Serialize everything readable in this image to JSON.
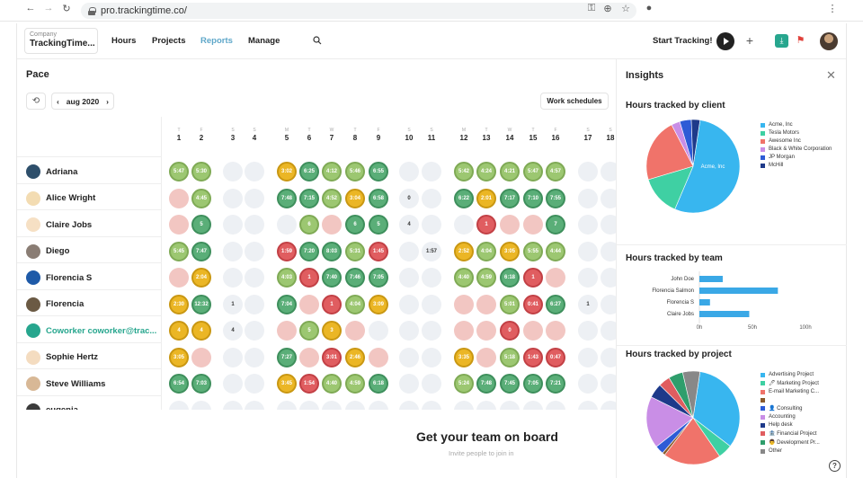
{
  "browser": {
    "url": "pro.trackingtime.co/"
  },
  "header": {
    "company_label": "Company",
    "company_name": "TrackingTime...",
    "nav": [
      "Hours",
      "Projects",
      "Reports",
      "Manage"
    ],
    "active_nav": "Reports",
    "start_tracking": "Start Tracking!"
  },
  "pace": {
    "title": "Pace",
    "month": "aug 2020",
    "work_schedules": "Work schedules",
    "days": [
      {
        "wd": "T",
        "d": "1"
      },
      {
        "wd": "F",
        "d": "2"
      },
      {
        "wd": "S",
        "d": "3"
      },
      {
        "wd": "S",
        "d": "4"
      },
      {
        "wd": "M",
        "d": "5"
      },
      {
        "wd": "T",
        "d": "6"
      },
      {
        "wd": "W",
        "d": "7"
      },
      {
        "wd": "T",
        "d": "8"
      },
      {
        "wd": "F",
        "d": "9"
      },
      {
        "wd": "S",
        "d": "10"
      },
      {
        "wd": "S",
        "d": "11"
      },
      {
        "wd": "M",
        "d": "12"
      },
      {
        "wd": "T",
        "d": "13"
      },
      {
        "wd": "W",
        "d": "14"
      },
      {
        "wd": "T",
        "d": "15"
      },
      {
        "wd": "F",
        "d": "16"
      },
      {
        "wd": "S",
        "d": "17"
      },
      {
        "wd": "S",
        "d": "18"
      }
    ],
    "users": [
      {
        "name": "Adriana",
        "cells": [
          [
            "lg",
            "5:47"
          ],
          [
            "lg",
            "5:30"
          ],
          [
            "e",
            ""
          ],
          [
            "e",
            ""
          ],
          [
            "y",
            "3:02"
          ],
          [
            "g",
            "6:25"
          ],
          [
            "lg",
            "4:12"
          ],
          [
            "lg",
            "5:46"
          ],
          [
            "g",
            "6:55"
          ],
          [
            "e",
            ""
          ],
          [
            "e",
            ""
          ],
          [
            "lg",
            "5:42"
          ],
          [
            "lg",
            "4:24"
          ],
          [
            "lg",
            "4:21"
          ],
          [
            "lg",
            "5:47"
          ],
          [
            "lg",
            "4:57"
          ],
          [
            "e",
            ""
          ],
          [
            "e",
            ""
          ]
        ]
      },
      {
        "name": "Alice Wright",
        "cells": [
          [
            "p",
            ""
          ],
          [
            "lg",
            "4:45"
          ],
          [
            "e",
            ""
          ],
          [
            "e",
            ""
          ],
          [
            "g",
            "7:48"
          ],
          [
            "g",
            "7:15"
          ],
          [
            "lg",
            "4:52"
          ],
          [
            "y",
            "3:04"
          ],
          [
            "g",
            "6:58"
          ],
          [
            "w",
            "0"
          ],
          [
            "e",
            ""
          ],
          [
            "g",
            "6:22"
          ],
          [
            "y",
            "2:01"
          ],
          [
            "g",
            "7:17"
          ],
          [
            "g",
            "7:10"
          ],
          [
            "g",
            "7:55"
          ],
          [
            "e",
            ""
          ],
          [
            "e",
            ""
          ]
        ]
      },
      {
        "name": "Claire Jobs",
        "cells": [
          [
            "p",
            ""
          ],
          [
            "g",
            "5"
          ],
          [
            "e",
            ""
          ],
          [
            "e",
            ""
          ],
          [
            "e",
            ""
          ],
          [
            "lg",
            "6"
          ],
          [
            "p",
            ""
          ],
          [
            "g",
            "6"
          ],
          [
            "g",
            "5"
          ],
          [
            "w",
            "4"
          ],
          [
            "e",
            ""
          ],
          [
            "e",
            ""
          ],
          [
            "r",
            "1"
          ],
          [
            "p",
            ""
          ],
          [
            "p",
            ""
          ],
          [
            "g",
            "7"
          ],
          [
            "e",
            ""
          ],
          [
            "e",
            ""
          ]
        ]
      },
      {
        "name": "Diego",
        "cells": [
          [
            "lg",
            "5:45"
          ],
          [
            "g",
            "7:47"
          ],
          [
            "e",
            ""
          ],
          [
            "e",
            ""
          ],
          [
            "r",
            "1:59"
          ],
          [
            "g",
            "7:20"
          ],
          [
            "g",
            "8:03"
          ],
          [
            "lg",
            "5:31"
          ],
          [
            "r",
            "1:45"
          ],
          [
            "e",
            ""
          ],
          [
            "w",
            "1:57"
          ],
          [
            "y",
            "2:52"
          ],
          [
            "lg",
            "4:04"
          ],
          [
            "y",
            "3:05"
          ],
          [
            "lg",
            "5:55"
          ],
          [
            "lg",
            "4:44"
          ],
          [
            "e",
            ""
          ],
          [
            "e",
            ""
          ]
        ]
      },
      {
        "name": "Florencia S",
        "cells": [
          [
            "p",
            ""
          ],
          [
            "y",
            "2:04"
          ],
          [
            "e",
            ""
          ],
          [
            "e",
            ""
          ],
          [
            "lg",
            "4:03"
          ],
          [
            "r",
            "1"
          ],
          [
            "g",
            "7:40"
          ],
          [
            "g",
            "7:46"
          ],
          [
            "g",
            "7:05"
          ],
          [
            "e",
            ""
          ],
          [
            "e",
            ""
          ],
          [
            "lg",
            "4:40"
          ],
          [
            "lg",
            "4:59"
          ],
          [
            "g",
            "6:18"
          ],
          [
            "r",
            "1"
          ],
          [
            "p",
            ""
          ],
          [
            "e",
            ""
          ],
          [
            "e",
            ""
          ]
        ]
      },
      {
        "name": "Florencia",
        "cells": [
          [
            "y",
            "2:30"
          ],
          [
            "g",
            "12:32"
          ],
          [
            "w",
            "1"
          ],
          [
            "e",
            ""
          ],
          [
            "g",
            "7:04"
          ],
          [
            "p",
            ""
          ],
          [
            "r",
            "1"
          ],
          [
            "lg",
            "4:04"
          ],
          [
            "y",
            "3:09"
          ],
          [
            "e",
            ""
          ],
          [
            "e",
            ""
          ],
          [
            "p",
            ""
          ],
          [
            "p",
            ""
          ],
          [
            "lg",
            "5:01"
          ],
          [
            "r",
            "0:41"
          ],
          [
            "g",
            "6:27"
          ],
          [
            "w",
            "1"
          ],
          [
            "e",
            ""
          ]
        ]
      },
      {
        "name": "Coworker coworker@trac...",
        "teal": true,
        "cells": [
          [
            "y",
            "4"
          ],
          [
            "y",
            "4"
          ],
          [
            "w",
            "4"
          ],
          [
            "e",
            ""
          ],
          [
            "p",
            ""
          ],
          [
            "lg",
            "5"
          ],
          [
            "y",
            "3"
          ],
          [
            "p",
            ""
          ],
          [
            "e",
            ""
          ],
          [
            "e",
            ""
          ],
          [
            "e",
            ""
          ],
          [
            "p",
            ""
          ],
          [
            "p",
            ""
          ],
          [
            "r",
            "0"
          ],
          [
            "p",
            ""
          ],
          [
            "p",
            ""
          ],
          [
            "e",
            ""
          ],
          [
            "e",
            ""
          ]
        ]
      },
      {
        "name": "Sophie Hertz",
        "cells": [
          [
            "y",
            "3:05"
          ],
          [
            "p",
            ""
          ],
          [
            "e",
            ""
          ],
          [
            "e",
            ""
          ],
          [
            "g",
            "7:27"
          ],
          [
            "p",
            ""
          ],
          [
            "r",
            "3:01"
          ],
          [
            "y",
            "2:46"
          ],
          [
            "p",
            ""
          ],
          [
            "e",
            ""
          ],
          [
            "e",
            ""
          ],
          [
            "y",
            "3:35"
          ],
          [
            "p",
            ""
          ],
          [
            "lg",
            "5:18"
          ],
          [
            "r",
            "1:43"
          ],
          [
            "r",
            "0:47"
          ],
          [
            "e",
            ""
          ],
          [
            "e",
            ""
          ]
        ]
      },
      {
        "name": "Steve Williams",
        "cells": [
          [
            "g",
            "6:54"
          ],
          [
            "g",
            "7:03"
          ],
          [
            "e",
            ""
          ],
          [
            "e",
            ""
          ],
          [
            "y",
            "3:45"
          ],
          [
            "r",
            "1:54"
          ],
          [
            "lg",
            "4:40"
          ],
          [
            "lg",
            "4:59"
          ],
          [
            "g",
            "6:18"
          ],
          [
            "e",
            ""
          ],
          [
            "e",
            ""
          ],
          [
            "lg",
            "5:24"
          ],
          [
            "g",
            "7:48"
          ],
          [
            "g",
            "7:45"
          ],
          [
            "g",
            "7:05"
          ],
          [
            "g",
            "7:21"
          ],
          [
            "e",
            ""
          ],
          [
            "e",
            ""
          ]
        ]
      },
      {
        "name": "eugenia",
        "cells": [
          [
            "e",
            ""
          ],
          [
            "e",
            ""
          ],
          [
            "e",
            ""
          ],
          [
            "e",
            ""
          ],
          [
            "e",
            ""
          ],
          [
            "e",
            ""
          ],
          [
            "e",
            ""
          ],
          [
            "e",
            ""
          ],
          [
            "e",
            ""
          ],
          [
            "e",
            ""
          ],
          [
            "e",
            ""
          ],
          [
            "e",
            ""
          ],
          [
            "e",
            ""
          ],
          [
            "e",
            ""
          ],
          [
            "e",
            ""
          ],
          [
            "e",
            ""
          ],
          [
            "e",
            ""
          ],
          [
            "e",
            ""
          ]
        ]
      }
    ],
    "onboard_title": "Get your team on board",
    "onboard_sub": "Invite people to join in"
  },
  "insights": {
    "title": "Insights",
    "client_title": "Hours tracked by client",
    "team_title": "Hours tracked by team",
    "project_title": "Hours tracked by project"
  },
  "chart_data": [
    {
      "type": "pie",
      "title": "Hours tracked by client",
      "categories": [
        "Acme, Inc",
        "Tesla Motors",
        "Awesome Inc",
        "Black & White Corporation",
        "JP Morgan",
        "McHill"
      ],
      "values": [
        54,
        14,
        22,
        3,
        4,
        3
      ],
      "colors": [
        "#38b6ef",
        "#3fd0a3",
        "#f0736a",
        "#c98ee6",
        "#2d5bd6",
        "#1e3a8a"
      ],
      "slice_label": "Acme, Inc",
      "legend": "right"
    },
    {
      "type": "bar",
      "title": "Hours tracked by team",
      "orientation": "horizontal",
      "categories": [
        "John Doe",
        "Florencia Salmon",
        "Florencia S",
        "Claire Jobs"
      ],
      "values": [
        22,
        74,
        10,
        47
      ],
      "xlim": [
        0,
        100
      ],
      "xticks": [
        "0h",
        "50h",
        "100h"
      ],
      "color": "#3aa8e6"
    },
    {
      "type": "pie",
      "title": "Hours tracked by project",
      "categories": [
        "Advertising Project",
        "🖊 Marketing Project",
        "E-mail Marketing C...",
        "",
        "👤 Consulting",
        "Accounting",
        "Help desk",
        "🏦 Financial Project",
        "👨 Development Pr...",
        "Other"
      ],
      "values": [
        33,
        5,
        20,
        1,
        3,
        18,
        5,
        4,
        5,
        6
      ],
      "colors": [
        "#38b6ef",
        "#3fd0a3",
        "#f0736a",
        "#8b5a2b",
        "#2d5bd6",
        "#c98ee6",
        "#1e3a8a",
        "#e05d60",
        "#2f9e6c",
        "#888888"
      ],
      "legend": "right"
    }
  ]
}
